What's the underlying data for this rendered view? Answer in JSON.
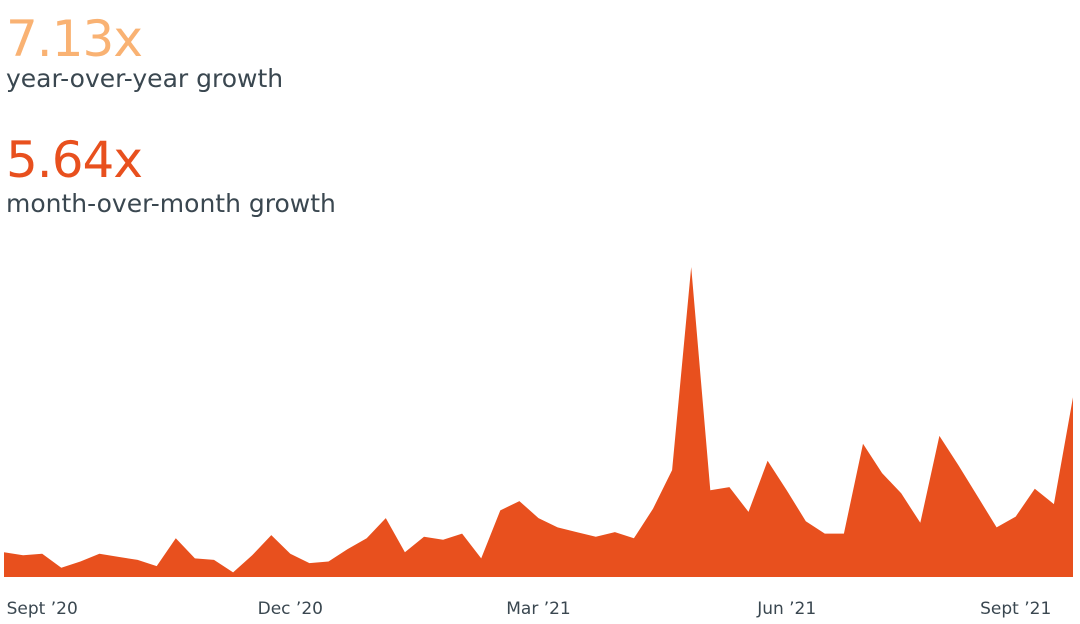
{
  "stats": {
    "yoy": {
      "value": "7.13x",
      "caption": "year-over-year growth",
      "color": "#f9b273"
    },
    "mom": {
      "value": "5.64x",
      "caption": "month-over-month growth",
      "color": "#e8501e"
    }
  },
  "chart_data": {
    "type": "area",
    "title": "",
    "xlabel": "",
    "ylabel": "",
    "grid": false,
    "legend": "none",
    "color": "#e8501e",
    "tick_labels": [
      {
        "label": "Sept ’20",
        "index": 2
      },
      {
        "label": "Dec ’20",
        "index": 15
      },
      {
        "label": "Mar ’21",
        "index": 28
      },
      {
        "label": "Jun ’21",
        "index": 41
      },
      {
        "label": "Sept ’21",
        "index": 53
      }
    ],
    "ylim": [
      0,
      100
    ],
    "values": [
      8,
      7,
      7.5,
      3,
      5,
      7.5,
      6.5,
      5.5,
      3.5,
      12.5,
      6,
      5.5,
      1.5,
      7,
      13.5,
      7.5,
      4.5,
      5,
      9,
      12.5,
      19,
      8,
      13,
      12,
      14,
      6,
      21.5,
      24.5,
      19,
      16,
      14.5,
      13,
      14.5,
      12.5,
      22,
      34.5,
      100,
      28,
      29,
      21,
      37.5,
      28,
      18,
      14,
      14,
      43,
      33.5,
      27,
      17.5,
      45.5,
      36,
      26,
      16,
      19.5,
      28.5,
      23.5,
      58
    ]
  }
}
